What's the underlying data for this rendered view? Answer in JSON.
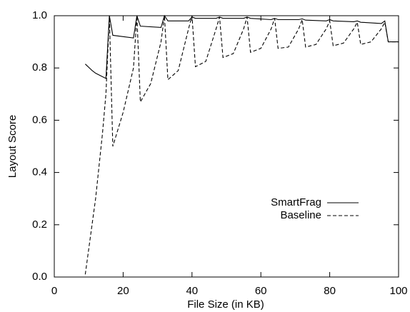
{
  "chart_data": {
    "type": "line",
    "xlabel": "File Size (in KB)",
    "ylabel": "Layout Score",
    "xlim": [
      0,
      100
    ],
    "xticks": [
      0,
      20,
      40,
      60,
      80,
      100
    ],
    "ylim": [
      0,
      1
    ],
    "yticks": [
      {
        "value": 0,
        "label": "0.0"
      },
      0.2,
      0.4,
      0.6,
      0.8,
      {
        "value": 1,
        "label": "1.0"
      }
    ],
    "legend": "lower right",
    "series": [
      {
        "name": "SmartFrag",
        "color": "#000000",
        "dash": "solid",
        "x": [
          9,
          11,
          12,
          15,
          16,
          17,
          20,
          23,
          24,
          25,
          31,
          32,
          33,
          39,
          40,
          41,
          47,
          48,
          49,
          55,
          56,
          57,
          63,
          64,
          65,
          71,
          72,
          73,
          79,
          80,
          81,
          87,
          88,
          89,
          95,
          96,
          97,
          100
        ],
        "values": [
          0.815,
          0.79,
          0.78,
          0.76,
          1.0,
          0.925,
          0.92,
          0.915,
          1.0,
          0.96,
          0.955,
          1.0,
          0.98,
          0.98,
          0.995,
          0.99,
          0.99,
          0.995,
          0.99,
          0.99,
          0.995,
          0.99,
          0.985,
          0.99,
          0.985,
          0.985,
          0.988,
          0.983,
          0.98,
          0.985,
          0.98,
          0.977,
          0.98,
          0.975,
          0.97,
          0.98,
          0.9,
          0.9
        ]
      },
      {
        "name": "Baseline",
        "color": "#000000",
        "dash": "dashed",
        "x": [
          9,
          12,
          14,
          15,
          16,
          17,
          20,
          23,
          24,
          25,
          28,
          31,
          32,
          33,
          36,
          39,
          40,
          41,
          44,
          47,
          48,
          49,
          52,
          55,
          56,
          57,
          60,
          63,
          64,
          65,
          68,
          71,
          72,
          73,
          76,
          79,
          80,
          81,
          84,
          87,
          88,
          89,
          92,
          95,
          96,
          97,
          100
        ],
        "values": [
          0.01,
          0.3,
          0.55,
          0.7,
          1.0,
          0.5,
          0.63,
          0.8,
          1.0,
          0.67,
          0.74,
          0.9,
          1.0,
          0.755,
          0.79,
          0.95,
          1.0,
          0.805,
          0.825,
          0.95,
          0.995,
          0.84,
          0.855,
          0.95,
          0.995,
          0.86,
          0.875,
          0.95,
          0.99,
          0.875,
          0.88,
          0.95,
          0.985,
          0.88,
          0.89,
          0.95,
          0.98,
          0.885,
          0.895,
          0.95,
          0.975,
          0.89,
          0.9,
          0.95,
          0.975,
          0.9,
          0.9
        ]
      }
    ]
  }
}
